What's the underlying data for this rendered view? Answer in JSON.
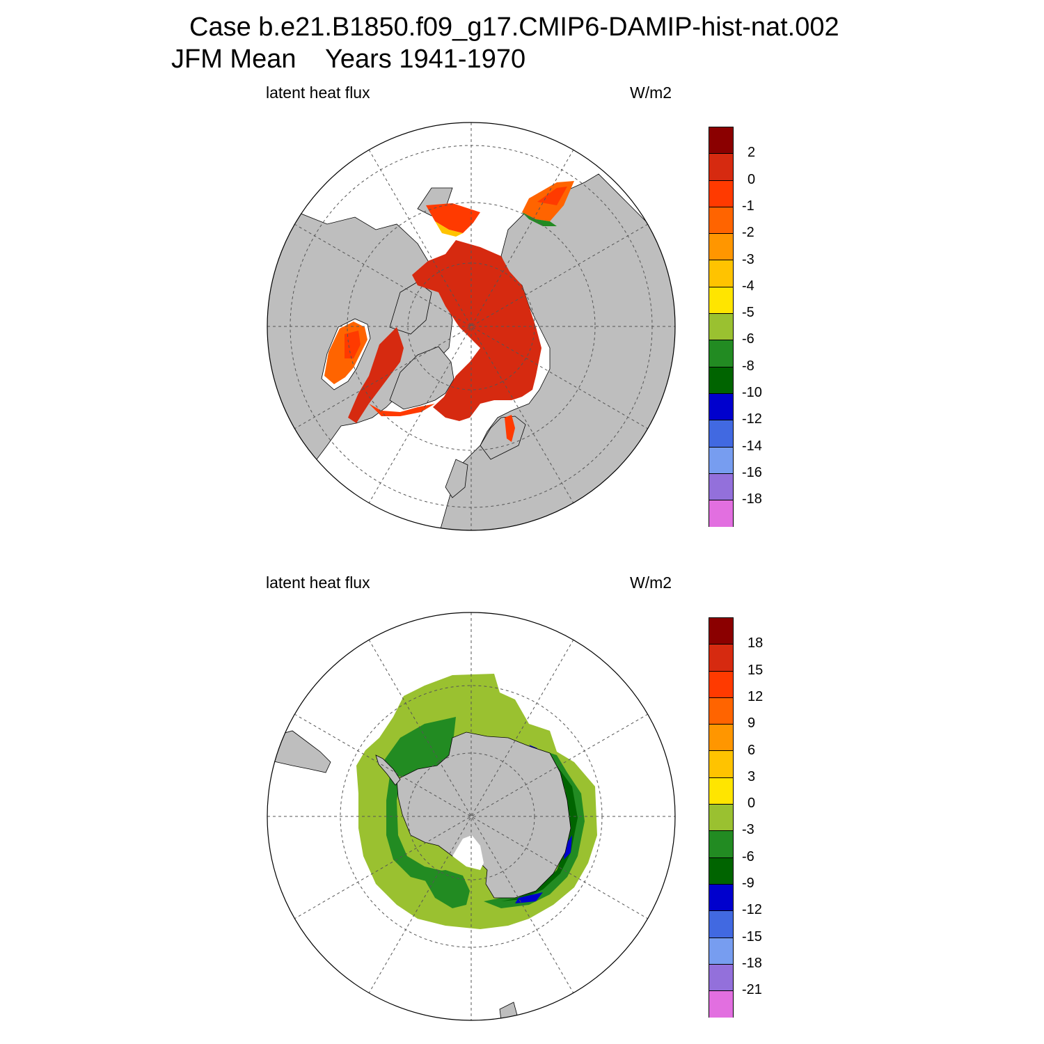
{
  "title": {
    "line1": "Case b.e21.B1850.f09_g17.CMIP6-DAMIP-hist-nat.002",
    "season": "JFM Mean",
    "years": "Years 1941-1970"
  },
  "panels": [
    {
      "id": "north",
      "hemisphere": "north",
      "variable_label": "latent heat flux",
      "units_label": "W/m2",
      "colorbar": {
        "colors": [
          "#8b0000",
          "#d62a10",
          "#ff3a00",
          "#ff6400",
          "#ff9600",
          "#ffc300",
          "#ffe500",
          "#9ac130",
          "#228b22",
          "#006400",
          "#0000cd",
          "#4169e1",
          "#779df0",
          "#9370db",
          "#e26fe0"
        ],
        "labels": [
          "2",
          "0",
          "-1",
          "-2",
          "-3",
          "-4",
          "-5",
          "-6",
          "-8",
          "-10",
          "-12",
          "-14",
          "-16",
          "-18"
        ]
      }
    },
    {
      "id": "south",
      "hemisphere": "south",
      "variable_label": "latent heat flux",
      "units_label": "W/m2",
      "colorbar": {
        "colors": [
          "#8b0000",
          "#d62a10",
          "#ff3a00",
          "#ff6400",
          "#ff9600",
          "#ffc300",
          "#ffe500",
          "#9ac130",
          "#228b22",
          "#006400",
          "#0000cd",
          "#4169e1",
          "#779df0",
          "#9370db",
          "#e26fe0"
        ],
        "labels": [
          "18",
          "15",
          "12",
          "9",
          "6",
          "3",
          "0",
          "-3",
          "-6",
          "-9",
          "-12",
          "-15",
          "-18",
          "-21"
        ]
      }
    }
  ],
  "map_colors": {
    "land": "#bebebe",
    "ocean_missing": "#ffffff",
    "grid": "#555555"
  }
}
